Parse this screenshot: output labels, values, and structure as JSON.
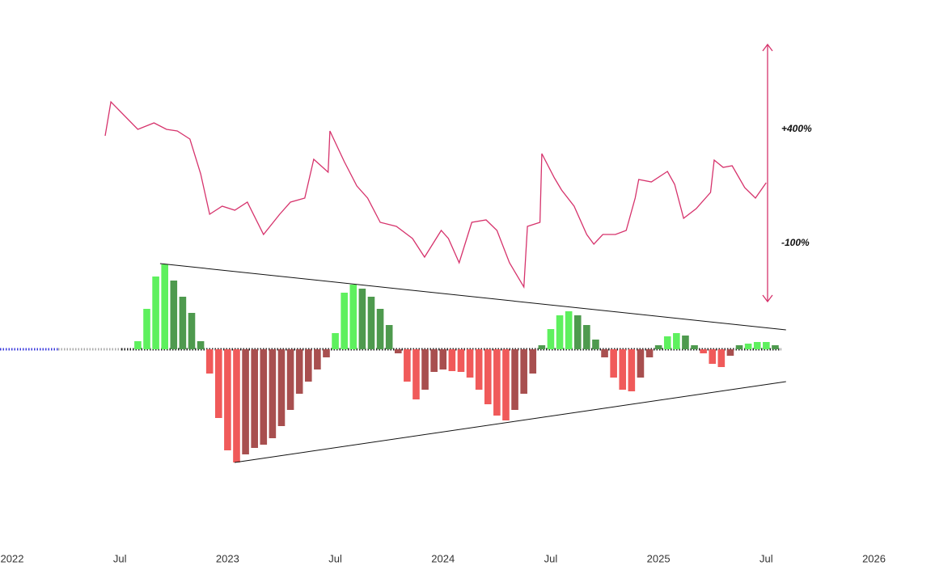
{
  "chart_data": [
    {
      "type": "line",
      "color": "#d6336c",
      "annotations": [
        "+400%",
        "-100%"
      ],
      "xlim": [
        -0.676,
        51.4
      ],
      "ylim": [
        0,
        240
      ],
      "xticks": [
        {
          "value": 0,
          "label": "2022"
        },
        {
          "value": 6,
          "label": "Jul"
        },
        {
          "value": 12,
          "label": "2023"
        },
        {
          "value": 18,
          "label": "Jul"
        },
        {
          "value": 24,
          "label": "2024"
        },
        {
          "value": 30,
          "label": "Jul"
        },
        {
          "value": 36,
          "label": "2025"
        },
        {
          "value": 42,
          "label": "Jul"
        },
        {
          "value": 48,
          "label": "2026"
        }
      ],
      "x": [
        5.18,
        5.5,
        7.0,
        7.9,
        8.6,
        9.2,
        9.9,
        10.5,
        11.0,
        11.7,
        12.4,
        13.1,
        14.0,
        14.9,
        15.5,
        16.3,
        16.8,
        17.6,
        17.7,
        18.5,
        19.2,
        19.8,
        20.5,
        21.4,
        22.3,
        22.97,
        23.9,
        24.3,
        24.9,
        25.6,
        26.4,
        27.0,
        27.7,
        28.5,
        28.7,
        29.4,
        29.5,
        30.2,
        30.6,
        31.3,
        32.0,
        32.4,
        32.9,
        33.6,
        34.2,
        34.7,
        34.9,
        35.6,
        36.5,
        36.9,
        37.4,
        38.1,
        38.9,
        39.1,
        39.6,
        40.1,
        40.8,
        41.4,
        42.0
      ],
      "values": [
        192,
        234,
        200,
        208,
        200,
        198,
        188,
        145,
        95,
        105,
        100,
        110,
        70,
        95,
        110,
        115,
        163,
        147,
        198,
        160,
        130,
        115,
        85,
        80,
        65,
        42,
        75,
        65,
        35,
        85,
        88,
        75,
        35,
        5,
        80,
        85,
        170,
        140,
        125,
        105,
        70,
        58,
        70,
        70,
        75,
        115,
        138,
        135,
        148,
        132,
        90,
        102,
        122,
        162,
        153,
        155,
        128,
        115,
        134
      ]
    },
    {
      "type": "bar",
      "colors": {
        "up_rising": "#5ef05e",
        "up_falling": "#4e9a4e",
        "down_rising": "#f05a5a",
        "down_falling": "#a84f4f"
      },
      "xlim": [
        -0.676,
        51.4
      ],
      "ylim": [
        -143,
        107
      ],
      "x": [
        7.0,
        7.5,
        8.0,
        8.5,
        9.0,
        9.5,
        10.0,
        10.5,
        11.0,
        11.5,
        12.0,
        12.5,
        13.0,
        13.5,
        14.0,
        14.5,
        15.0,
        15.5,
        16.0,
        16.5,
        17.0,
        17.5,
        18.0,
        18.5,
        19.0,
        19.5,
        20.0,
        20.5,
        21.0,
        21.5,
        22.0,
        22.5,
        23.0,
        23.5,
        24.0,
        24.5,
        25.0,
        25.5,
        26.0,
        26.5,
        27.0,
        27.5,
        28.0,
        28.5,
        29.0,
        29.5,
        30.0,
        30.5,
        31.0,
        31.5,
        32.0,
        32.5,
        33.0,
        33.5,
        34.0,
        34.5,
        35.0,
        35.5,
        36.0,
        36.5,
        37.0,
        37.5,
        38.0,
        38.5,
        39.0,
        39.5,
        40.0,
        40.5,
        41.0,
        41.5,
        42.0,
        42.5
      ],
      "values": [
        10,
        50,
        90,
        105,
        85,
        65,
        45,
        10,
        -30,
        -85,
        -125,
        -140,
        -130,
        -122,
        -118,
        -110,
        -95,
        -75,
        -55,
        -40,
        -25,
        -10,
        20,
        70,
        80,
        75,
        65,
        50,
        30,
        -5,
        -40,
        -62,
        -50,
        -28,
        -25,
        -27,
        -28,
        -35,
        -50,
        -68,
        -82,
        -88,
        -75,
        -55,
        -30,
        5,
        25,
        42,
        47,
        42,
        30,
        12,
        -10,
        -35,
        -50,
        -52,
        -35,
        -10,
        5,
        16,
        20,
        17,
        5,
        -5,
        -18,
        -22,
        -8,
        5,
        7,
        9,
        9,
        5
      ],
      "trendlines": [
        {
          "x": [
            8.24,
            43.1
          ],
          "y": [
            106,
            24
          ]
        },
        {
          "x": [
            12.39,
            43.1
          ],
          "y": [
            -140,
            -40
          ]
        }
      ]
    }
  ]
}
